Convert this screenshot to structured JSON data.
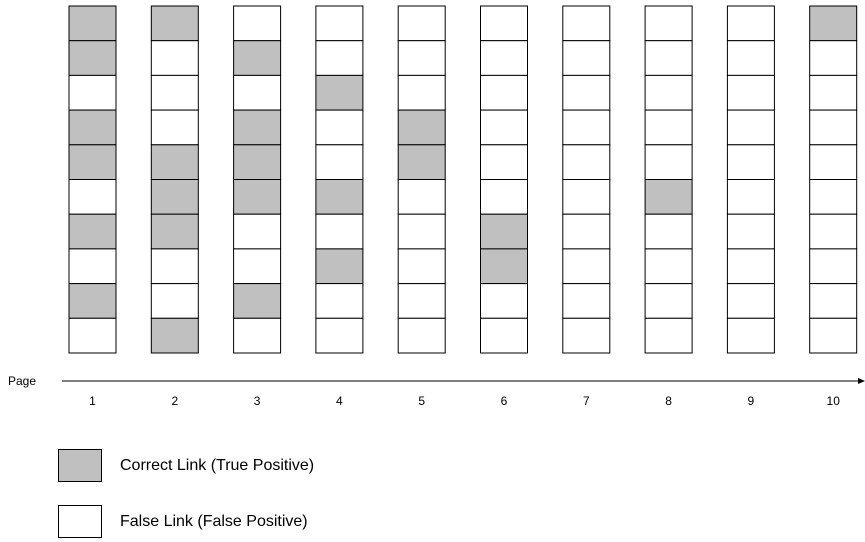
{
  "colors": {
    "correct": "#c0c0c0",
    "false": "#ffffff",
    "stroke": "#000000"
  },
  "axis": {
    "label": "Page"
  },
  "pages": [
    {
      "label": "1",
      "cells": [
        1,
        1,
        0,
        1,
        1,
        0,
        1,
        0,
        1,
        0
      ]
    },
    {
      "label": "2",
      "cells": [
        1,
        0,
        0,
        0,
        1,
        1,
        1,
        0,
        0,
        1
      ]
    },
    {
      "label": "3",
      "cells": [
        0,
        1,
        0,
        1,
        1,
        1,
        0,
        0,
        1,
        0
      ]
    },
    {
      "label": "4",
      "cells": [
        0,
        0,
        1,
        0,
        0,
        1,
        0,
        1,
        0,
        0
      ]
    },
    {
      "label": "5",
      "cells": [
        0,
        0,
        0,
        1,
        1,
        0,
        0,
        0,
        0,
        0
      ]
    },
    {
      "label": "6",
      "cells": [
        0,
        0,
        0,
        0,
        0,
        0,
        1,
        1,
        0,
        0
      ]
    },
    {
      "label": "7",
      "cells": [
        0,
        0,
        0,
        0,
        0,
        0,
        0,
        0,
        0,
        0
      ]
    },
    {
      "label": "8",
      "cells": [
        0,
        0,
        0,
        0,
        0,
        1,
        0,
        0,
        0,
        0
      ]
    },
    {
      "label": "9",
      "cells": [
        0,
        0,
        0,
        0,
        0,
        0,
        0,
        0,
        0,
        0
      ]
    },
    {
      "label": "10",
      "cells": [
        1,
        0,
        0,
        0,
        0,
        0,
        0,
        0,
        0,
        0
      ]
    }
  ],
  "legend": {
    "correct": "Correct Link (True Positive)",
    "false": "False Link (False Positive)"
  }
}
